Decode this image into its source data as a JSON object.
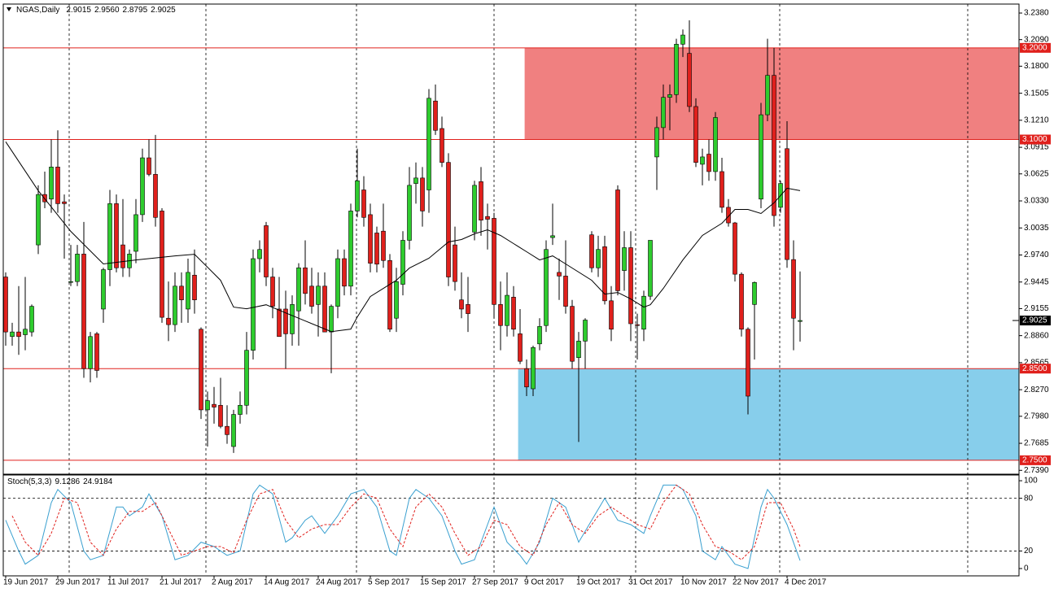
{
  "chart_data": {
    "type": "candlestick",
    "title": "NGAS,Daily",
    "header_ohlc": [
      "2.9015",
      "2.9560",
      "2.8795",
      "2.9025"
    ],
    "categories": [
      "19 Jun 2017",
      null,
      null,
      null,
      null,
      null,
      null,
      null,
      "29 Jun 2017",
      null,
      null,
      null,
      null,
      null,
      null,
      null,
      "11 Jul 2017",
      null,
      null,
      null,
      null,
      null,
      null,
      null,
      "21 Jul 2017",
      null,
      null,
      null,
      null,
      null,
      null,
      null,
      "2 Aug 2017",
      null,
      null,
      null,
      null,
      null,
      null,
      null,
      "14 Aug 2017",
      null,
      null,
      null,
      null,
      null,
      null,
      null,
      "24 Aug 2017",
      null,
      null,
      null,
      null,
      null,
      null,
      null,
      "5 Sep 2017",
      null,
      null,
      null,
      null,
      null,
      null,
      null,
      "15 Sep 2017",
      null,
      null,
      null,
      null,
      null,
      null,
      null,
      "27 Sep 2017",
      null,
      null,
      null,
      null,
      null,
      null,
      null,
      "9 Oct 2017",
      null,
      null,
      null,
      null,
      null,
      null,
      null,
      "19 Oct 2017",
      null,
      null,
      null,
      null,
      null,
      null,
      null,
      "31 Oct 2017",
      null,
      null,
      null,
      null,
      null,
      null,
      null,
      "10 Nov 2017",
      null,
      null,
      null,
      null,
      null,
      null,
      null,
      "22 Nov 2017",
      null,
      null,
      null,
      null,
      null,
      null,
      null,
      "4 Dec 2017",
      null,
      null
    ],
    "open": [
      2.95,
      2.885,
      2.89,
      2.887,
      2.89,
      2.985,
      3.04,
      3.035,
      3.07,
      3.032,
      2.945,
      2.945,
      2.975,
      2.85,
      2.888,
      2.915,
      2.958,
      3.03,
      2.985,
      2.96,
      2.978,
      3.018,
      3.08,
      3.062,
      3.022,
      2.905,
      2.898,
      2.94,
      2.915,
      2.952,
      2.893,
      2.805,
      2.811,
      2.81,
      2.787,
      2.765,
      2.8,
      2.81,
      2.87,
      2.97,
      3.006,
      2.95,
      2.915,
      2.915,
      2.888,
      2.913,
      2.96,
      2.94,
      2.92,
      2.94,
      2.89,
      2.918,
      2.97,
      2.94,
      3.022,
      3.045,
      3.018,
      2.998,
      3.0,
      2.968,
      2.905,
      2.942,
      2.99,
      3.052,
      3.058,
      3.045,
      3.142,
      3.112,
      3.075,
      2.985,
      2.925,
      2.92,
      2.999,
      3.054,
      3.016,
      3.014,
      2.92,
      2.897,
      2.928,
      2.888,
      2.85,
      2.828,
      2.877,
      2.897,
      2.993,
      2.955,
      2.951,
      2.918,
      2.862,
      2.88,
      2.996,
      2.96,
      2.983,
      2.924,
      3.045,
      2.957,
      2.982,
      2.898,
      2.893,
      2.929,
      3.081,
      3.113,
      3.146,
      3.149,
      3.204,
      3.194,
      3.136,
      3.073,
      3.084,
      3.065,
      3.065,
      3.026,
      3.009,
      2.953,
      2.893,
      2.92,
      3.035,
      3.127,
      3.17,
      3.026,
      3.09,
      2.969,
      2.9015
    ],
    "high": [
      2.955,
      2.9,
      2.94,
      2.95,
      2.92,
      3.05,
      3.065,
      3.1,
      3.11,
      3.04,
      2.985,
      2.985,
      3.01,
      2.89,
      2.89,
      2.96,
      3.045,
      3.04,
      3.035,
      2.98,
      3.035,
      3.09,
      3.1,
      3.105,
      3.025,
      2.945,
      2.955,
      2.955,
      2.97,
      2.98,
      2.895,
      2.825,
      2.83,
      2.84,
      2.81,
      2.805,
      2.825,
      2.89,
      2.98,
      2.99,
      3.01,
      2.96,
      2.95,
      2.935,
      2.93,
      2.965,
      2.99,
      2.96,
      2.955,
      2.955,
      2.92,
      2.98,
      2.98,
      3.03,
      3.09,
      3.06,
      3.03,
      3.005,
      3.03,
      2.975,
      2.96,
      3.0,
      3.07,
      3.075,
      3.07,
      3.155,
      3.16,
      3.125,
      3.085,
      3.005,
      2.955,
      2.95,
      3.055,
      3.07,
      3.03,
      3.02,
      2.945,
      2.955,
      2.94,
      2.915,
      2.86,
      2.875,
      2.905,
      2.99,
      3.03,
      2.97,
      2.99,
      2.925,
      2.89,
      2.905,
      3.0,
      2.995,
      2.995,
      2.94,
      3.05,
      3.0,
      3.0,
      2.91,
      2.935,
      2.99,
      3.125,
      3.16,
      3.16,
      3.21,
      3.22,
      3.23,
      3.145,
      3.09,
      3.1,
      3.13,
      3.08,
      3.035,
      3.01,
      2.955,
      2.895,
      2.945,
      3.14,
      3.21,
      3.2,
      3.055,
      3.12,
      2.99,
      2.956
    ],
    "low": [
      2.875,
      2.875,
      2.865,
      2.87,
      2.885,
      2.975,
      3.025,
      3.02,
      3.02,
      2.97,
      2.94,
      2.94,
      2.84,
      2.835,
      2.84,
      2.9,
      2.94,
      2.955,
      2.95,
      2.95,
      2.965,
      3.01,
      3.06,
      3.005,
      2.9,
      2.88,
      2.89,
      2.9,
      2.9,
      2.91,
      2.795,
      2.765,
      2.79,
      2.785,
      2.768,
      2.758,
      2.79,
      2.8,
      2.86,
      2.955,
      2.94,
      2.905,
      2.885,
      2.85,
      2.875,
      2.875,
      2.92,
      2.91,
      2.885,
      2.89,
      2.845,
      2.905,
      2.93,
      2.93,
      3.015,
      3.005,
      2.955,
      2.955,
      2.96,
      2.89,
      2.89,
      2.93,
      2.98,
      3.03,
      3.005,
      3.02,
      3.105,
      3.07,
      2.94,
      2.935,
      2.905,
      2.89,
      2.99,
      2.995,
      2.98,
      2.905,
      2.87,
      2.885,
      2.885,
      2.855,
      2.82,
      2.82,
      2.87,
      2.89,
      2.985,
      2.925,
      2.91,
      2.85,
      2.77,
      2.85,
      2.955,
      2.95,
      2.92,
      2.88,
      2.93,
      2.935,
      2.88,
      2.86,
      2.88,
      2.925,
      3.045,
      3.1,
      3.11,
      3.14,
      3.19,
      3.13,
      3.07,
      3.05,
      3.055,
      3.055,
      3.02,
      3.005,
      2.945,
      2.885,
      2.8,
      2.86,
      3.025,
      3.12,
      3.005,
      3.02,
      2.96,
      2.87,
      2.8795
    ],
    "close": [
      2.89,
      2.89,
      2.885,
      2.893,
      2.918,
      3.04,
      3.032,
      3.07,
      3.03,
      3.03,
      2.945,
      2.975,
      2.85,
      2.885,
      2.848,
      2.958,
      3.03,
      2.96,
      2.96,
      2.975,
      3.018,
      3.08,
      3.062,
      3.015,
      2.906,
      2.898,
      2.94,
      2.925,
      2.955,
      2.925,
      2.805,
      2.815,
      2.808,
      2.787,
      2.778,
      2.8,
      2.81,
      2.87,
      2.97,
      2.98,
      2.95,
      2.918,
      2.885,
      2.888,
      2.92,
      2.96,
      2.932,
      2.918,
      2.94,
      2.89,
      2.918,
      2.97,
      2.94,
      3.022,
      3.055,
      3.015,
      2.965,
      2.964,
      2.968,
      2.893,
      2.945,
      2.99,
      3.05,
      3.058,
      3.022,
      3.145,
      3.11,
      3.075,
      2.95,
      2.945,
      2.915,
      2.91,
      3.05,
      3.012,
      3.013,
      2.92,
      2.897,
      2.93,
      2.893,
      2.858,
      2.83,
      2.873,
      2.896,
      2.98,
      2.995,
      2.951,
      2.918,
      2.858,
      2.88,
      2.903,
      2.96,
      2.98,
      2.924,
      2.893,
      2.935,
      2.982,
      2.899,
      2.897,
      2.929,
      2.99,
      3.113,
      3.146,
      3.149,
      3.204,
      3.214,
      3.136,
      3.075,
      3.081,
      3.065,
      3.124,
      3.026,
      3.009,
      2.953,
      2.893,
      2.82,
      2.944,
      3.127,
      3.17,
      3.017,
      3.052,
      2.969,
      2.905,
      2.9025
    ],
    "up_color": "#2ecc2e",
    "down_color": "#e0201c",
    "ylim": [
      2.7357,
      3.2469
    ],
    "yticks": [
      {
        "value": 3.238,
        "label": "3.2380"
      },
      {
        "value": 3.209,
        "label": "3.2090"
      },
      {
        "value": 3.18,
        "label": "3.1800"
      },
      {
        "value": 3.1505,
        "label": "3.1505"
      },
      {
        "value": 3.121,
        "label": "3.1210"
      },
      {
        "value": 3.0915,
        "label": "3.0915"
      },
      {
        "value": 3.0625,
        "label": "3.0625"
      },
      {
        "value": 3.033,
        "label": "3.0330"
      },
      {
        "value": 3.0035,
        "label": "3.0035"
      },
      {
        "value": 2.974,
        "label": "2.9740"
      },
      {
        "value": 2.9445,
        "label": "2.9445"
      },
      {
        "value": 2.9155,
        "label": "2.9155"
      },
      {
        "value": 2.886,
        "label": "2.8860"
      },
      {
        "value": 2.8565,
        "label": "2.8565"
      },
      {
        "value": 2.827,
        "label": "2.8270"
      },
      {
        "value": 2.798,
        "label": "2.7980"
      },
      {
        "value": 2.7685,
        "label": "2.7685"
      },
      {
        "value": 2.739,
        "label": "2.7390"
      }
    ],
    "levels": [
      {
        "value": 3.2,
        "label": "3.2000"
      },
      {
        "value": 3.1,
        "label": "3.1000"
      },
      {
        "value": 2.85,
        "label": "2.8500"
      },
      {
        "value": 2.75,
        "label": "2.7500"
      }
    ],
    "level_color": "#e0201c",
    "zones": [
      {
        "from": 3.1,
        "to": 3.2,
        "start": 79.7,
        "color": "#f08080"
      },
      {
        "from": 2.75,
        "to": 2.85,
        "start": 78.7,
        "color": "#87ceeb"
      }
    ],
    "current_price": {
      "value": 2.9025,
      "label": "2.9025"
    },
    "ma": {
      "color": "#000000",
      "x": [
        0,
        5,
        10,
        15,
        20,
        26,
        29,
        33,
        35,
        37,
        40,
        43,
        46,
        50,
        53,
        54,
        56,
        60,
        62,
        65,
        68,
        70,
        72,
        74,
        76,
        78,
        80,
        82,
        84,
        86,
        90,
        92,
        94,
        96,
        98,
        99,
        101,
        104,
        107,
        110,
        112,
        114,
        116,
        118,
        120,
        122
      ],
      "values": [
        3.0975,
        3.0442,
        2.9997,
        2.9642,
        2.9686,
        2.973,
        2.9748,
        2.9464,
        2.9171,
        2.9153,
        2.9197,
        2.9108,
        2.902,
        2.8904,
        2.8931,
        2.9064,
        2.9286,
        2.9464,
        2.9597,
        2.9704,
        2.9882,
        2.9909,
        2.9971,
        3.0015,
        2.9953,
        2.9864,
        2.9775,
        2.9686,
        2.973,
        2.9642,
        2.9464,
        2.9313,
        2.9331,
        2.926,
        2.9171,
        2.9197,
        2.9375,
        2.9686,
        2.9953,
        3.0086,
        3.0237,
        3.0237,
        3.0193,
        3.0309,
        3.0469,
        3.0442
      ]
    },
    "stochastic": {
      "title": "Stoch(5,3,3)",
      "ylim": [
        -7.4,
        105.6
      ],
      "yticks": [
        0,
        20,
        80,
        100
      ],
      "levels": [
        20,
        80
      ],
      "series": [
        {
          "color": "#3aa0d0",
          "dash": false,
          "x": [
            0,
            2,
            3,
            5,
            7,
            8,
            10,
            12,
            13,
            15,
            17,
            18,
            19,
            21,
            22,
            24,
            26,
            28,
            30,
            32,
            34,
            36,
            38,
            39,
            41,
            43,
            44,
            46,
            47,
            49,
            51,
            53,
            55,
            57,
            59,
            60,
            62,
            63,
            65,
            67,
            69,
            70,
            72,
            74,
            75,
            77,
            79,
            80,
            82,
            84,
            86,
            88,
            90,
            92,
            94,
            96,
            98,
            99,
            101,
            103,
            104,
            106,
            107,
            109,
            110,
            112,
            114,
            116,
            117,
            118,
            120,
            122
          ],
          "values": [
            55,
            20,
            5,
            15,
            75,
            90,
            75,
            20,
            10,
            15,
            70,
            70,
            60,
            70,
            85,
            60,
            10,
            15,
            30,
            25,
            15,
            20,
            85,
            95,
            85,
            30,
            35,
            55,
            60,
            40,
            60,
            85,
            90,
            70,
            20,
            15,
            80,
            90,
            80,
            60,
            20,
            5,
            10,
            50,
            70,
            30,
            15,
            5,
            30,
            80,
            70,
            30,
            55,
            80,
            55,
            50,
            40,
            60,
            95,
            95,
            90,
            60,
            20,
            10,
            25,
            5,
            0,
            70,
            90,
            80,
            50,
            9.1286
          ]
        },
        {
          "color": "#e0201c",
          "dash": true,
          "x": [
            1,
            3,
            5,
            7,
            9,
            11,
            13,
            15,
            17,
            19,
            21,
            23,
            25,
            27,
            29,
            31,
            33,
            35,
            37,
            39,
            41,
            43,
            45,
            47,
            49,
            51,
            53,
            55,
            57,
            59,
            61,
            63,
            65,
            67,
            69,
            71,
            73,
            75,
            77,
            79,
            81,
            83,
            85,
            87,
            89,
            91,
            93,
            95,
            97,
            99,
            101,
            103,
            105,
            107,
            109,
            111,
            113,
            115,
            117,
            119,
            121,
            122
          ],
          "values": [
            60,
            30,
            15,
            40,
            80,
            75,
            30,
            15,
            45,
            65,
            65,
            75,
            45,
            15,
            20,
            25,
            25,
            18,
            55,
            85,
            90,
            55,
            35,
            45,
            50,
            50,
            70,
            85,
            80,
            45,
            25,
            70,
            85,
            70,
            40,
            15,
            25,
            55,
            50,
            25,
            15,
            50,
            75,
            50,
            40,
            60,
            70,
            60,
            50,
            45,
            75,
            95,
            85,
            50,
            25,
            20,
            10,
            25,
            75,
            75,
            45,
            24.9184
          ]
        }
      ]
    }
  }
}
